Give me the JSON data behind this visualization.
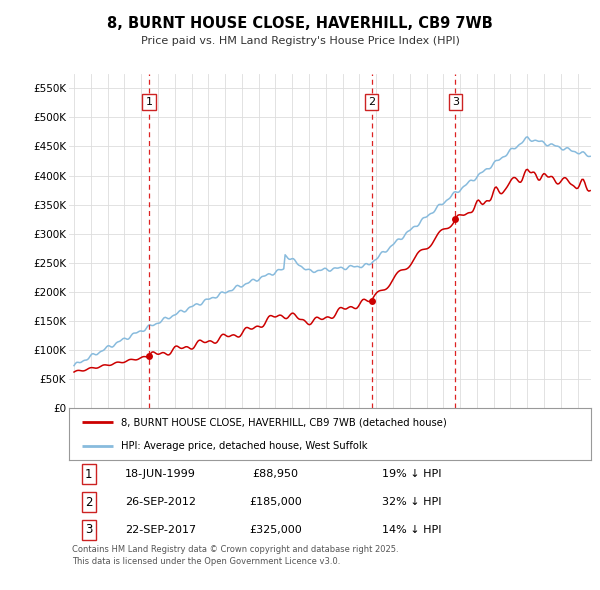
{
  "title": "8, BURNT HOUSE CLOSE, HAVERHILL, CB9 7WB",
  "subtitle": "Price paid vs. HM Land Registry's House Price Index (HPI)",
  "legend_line1": "8, BURNT HOUSE CLOSE, HAVERHILL, CB9 7WB (detached house)",
  "legend_line2": "HPI: Average price, detached house, West Suffolk",
  "footnote": "Contains HM Land Registry data © Crown copyright and database right 2025.\nThis data is licensed under the Open Government Licence v3.0.",
  "sale_color": "#cc0000",
  "hpi_color": "#88bbdd",
  "background_color": "#ffffff",
  "plot_bg_color": "#ffffff",
  "grid_color": "#dddddd",
  "ylim": [
    0,
    575000
  ],
  "yticks": [
    0,
    50000,
    100000,
    150000,
    200000,
    250000,
    300000,
    350000,
    400000,
    450000,
    500000,
    550000
  ],
  "xlim_start": 1994.7,
  "xlim_end": 2025.8,
  "sale_points": [
    {
      "year": 1999.46,
      "price": 88950,
      "label": "1"
    },
    {
      "year": 2012.73,
      "price": 185000,
      "label": "2"
    },
    {
      "year": 2017.72,
      "price": 325000,
      "label": "3"
    }
  ],
  "vline_years": [
    1999.46,
    2012.73,
    2017.72
  ],
  "transactions": [
    {
      "label": "1",
      "date": "18-JUN-1999",
      "price": "£88,950",
      "hpi_diff": "19% ↓ HPI"
    },
    {
      "label": "2",
      "date": "26-SEP-2012",
      "price": "£185,000",
      "hpi_diff": "32% ↓ HPI"
    },
    {
      "label": "3",
      "date": "22-SEP-2017",
      "price": "£325,000",
      "hpi_diff": "14% ↓ HPI"
    }
  ]
}
